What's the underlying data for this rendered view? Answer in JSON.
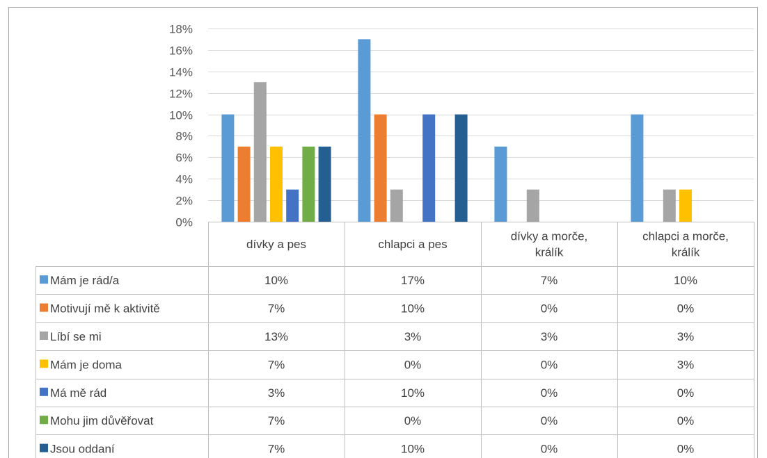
{
  "chart_data": {
    "type": "bar",
    "title": "",
    "xlabel": "",
    "ylabel": "",
    "ylim": [
      0,
      18
    ],
    "y_ticks": [
      "0%",
      "2%",
      "4%",
      "6%",
      "8%",
      "10%",
      "12%",
      "14%",
      "16%",
      "18%"
    ],
    "grid": true,
    "legend": "data-table",
    "categories": [
      [
        "dívky a pes"
      ],
      [
        "chlapci a pes"
      ],
      [
        "dívky a morče,",
        "králík"
      ],
      [
        "chlapci a morče,",
        "králík"
      ]
    ],
    "series": [
      {
        "name": "Mám je rád/a",
        "color": "#5B9BD5",
        "values": [
          10,
          17,
          7,
          10
        ],
        "labels": [
          "10%",
          "17%",
          "7%",
          "10%"
        ]
      },
      {
        "name": "Motivují mě k aktivitě",
        "color": "#ED7D31",
        "values": [
          7,
          10,
          0,
          0
        ],
        "labels": [
          "7%",
          "10%",
          "0%",
          "0%"
        ]
      },
      {
        "name": "Líbí se mi",
        "color": "#A5A5A5",
        "values": [
          13,
          3,
          3,
          3
        ],
        "labels": [
          "13%",
          "3%",
          "3%",
          "3%"
        ]
      },
      {
        "name": "Mám je doma",
        "color": "#FFC000",
        "values": [
          7,
          0,
          0,
          3
        ],
        "labels": [
          "7%",
          "0%",
          "0%",
          "3%"
        ]
      },
      {
        "name": "Má mě rád",
        "color": "#4472C4",
        "values": [
          3,
          10,
          0,
          0
        ],
        "labels": [
          "3%",
          "10%",
          "0%",
          "0%"
        ]
      },
      {
        "name": "Mohu jim důvěřovat",
        "color": "#70AD47",
        "values": [
          7,
          0,
          0,
          0
        ],
        "labels": [
          "7%",
          "0%",
          "0%",
          "0%"
        ]
      },
      {
        "name": "Jsou oddaní",
        "color": "#255E91",
        "values": [
          7,
          10,
          0,
          0
        ],
        "labels": [
          "7%",
          "10%",
          "0%",
          "0%"
        ]
      }
    ]
  }
}
